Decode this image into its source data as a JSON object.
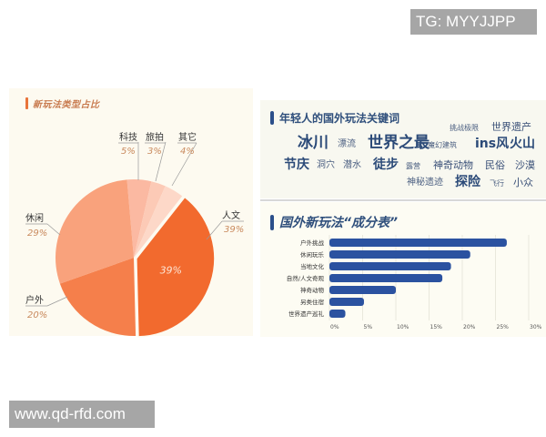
{
  "watermarks": {
    "top_right": "TG: MYYJJPP",
    "bottom_left": "www.qd-rfd.com"
  },
  "left_panel": {
    "title": "新玩法类型占比",
    "accent_color": "#e8743a"
  },
  "keywords_panel": {
    "title": "年轻人的国外玩法关键词",
    "rows": [
      [
        {
          "text": "挑战极限",
          "size": "xs"
        },
        {
          "text": "世界遗产",
          "size": "m"
        }
      ],
      [
        {
          "text": "冰川",
          "size": "xl"
        },
        {
          "text": "漂流",
          "size": "s"
        },
        {
          "text": "世界之最",
          "size": "xl"
        },
        {
          "text": "魔幻建筑",
          "size": "xs"
        },
        {
          "text": "ins风",
          "size": "l"
        },
        {
          "text": "火山",
          "size": "l"
        }
      ],
      [
        {
          "text": "节庆",
          "size": "l"
        },
        {
          "text": "洞穴",
          "size": "s"
        },
        {
          "text": "潜水",
          "size": "s"
        },
        {
          "text": "徒步",
          "size": "l"
        },
        {
          "text": "露营",
          "size": "xs"
        },
        {
          "text": "神奇动物",
          "size": "m"
        },
        {
          "text": "民俗",
          "size": "m"
        },
        {
          "text": "沙漠",
          "size": "m"
        }
      ],
      [
        {
          "text": "神秘遗迹",
          "size": "s"
        },
        {
          "text": "探险",
          "size": "l"
        },
        {
          "text": "飞行",
          "size": "xs"
        },
        {
          "text": "小众",
          "size": "m"
        }
      ]
    ]
  },
  "composition_panel": {
    "title": "国外新玩法“成分表”"
  },
  "chart_data": [
    {
      "type": "pie",
      "title": "新玩法类型占比",
      "categories": [
        "科技",
        "旅拍",
        "其它",
        "人文",
        "户外",
        "休闲"
      ],
      "values": [
        5,
        3,
        4,
        39,
        20,
        29
      ],
      "labels": [
        "5%",
        "3%",
        "4%",
        "39%",
        "20%",
        "29%"
      ],
      "colors": [
        "#fbb9a2",
        "#fccab6",
        "#fdd8c8",
        "#f26a2e",
        "#f57f4b",
        "#f9a27c"
      ],
      "exploded": "人文",
      "inner_label": "39%",
      "label_color": "#c98a5e",
      "legend": "none (callout labels with leader lines)"
    },
    {
      "type": "bar",
      "orientation": "horizontal",
      "title": "国外新玩法“成分表”",
      "categories": [
        "户外挑战",
        "休闲玩乐",
        "当地文化",
        "自然/人文奇观",
        "神奇动物",
        "另类住宿",
        "世界遗产巡礼"
      ],
      "values": [
        26.7,
        21.2,
        18.3,
        17.0,
        10.0,
        5.2,
        2.4
      ],
      "xlabel": "",
      "ylabel": "",
      "xlim": [
        0,
        30
      ],
      "xticks": [
        "0%",
        "5%",
        "10%",
        "15%",
        "20%",
        "25%",
        "30%"
      ],
      "grid": "vertical",
      "bar_color": "#2b52a0"
    }
  ]
}
